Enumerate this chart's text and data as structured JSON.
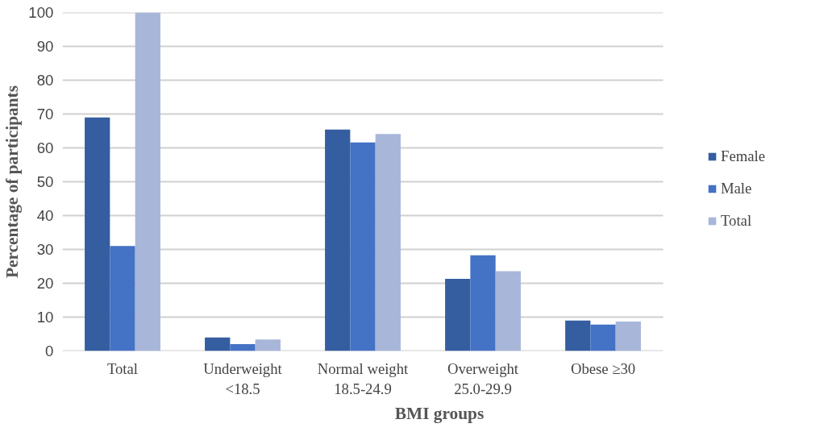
{
  "chart_data": {
    "type": "bar",
    "xlabel": "BMI groups",
    "ylabel": "Percentage of participants",
    "categories": [
      "Total",
      "Underweight\n<18.5",
      "Normal weight\n18.5-24.9",
      "Overweight\n25.0-29.9",
      "Obese ≥30"
    ],
    "series": [
      {
        "name": "Female",
        "color": "#355ea1",
        "values": [
          69,
          4,
          65.4,
          21.3,
          9
        ]
      },
      {
        "name": "Male",
        "color": "#4472c4",
        "values": [
          31,
          2,
          61.6,
          28.3,
          7.8
        ]
      },
      {
        "name": "Total",
        "color": "#a8b6da",
        "values": [
          100,
          3.4,
          64.1,
          23.6,
          8.7
        ]
      }
    ],
    "ylim": [
      0,
      100
    ],
    "yticks": [
      0,
      10,
      20,
      30,
      40,
      50,
      60,
      70,
      80,
      90,
      100
    ],
    "grid": "y",
    "legend": "right"
  }
}
